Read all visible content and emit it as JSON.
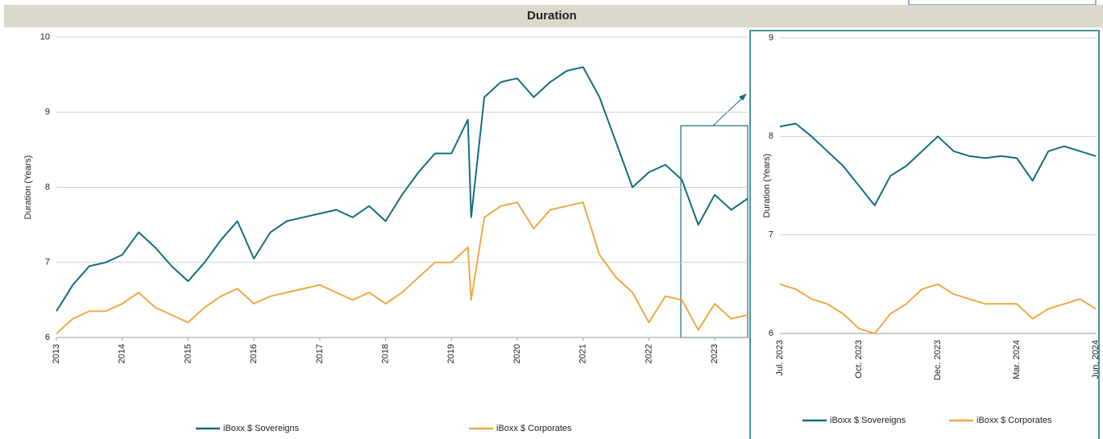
{
  "title": "Duration",
  "chart_data": [
    {
      "type": "line",
      "ylabel": "Duration (Years)",
      "x": [
        2013,
        2013.25,
        2013.5,
        2013.75,
        2014,
        2014.25,
        2014.5,
        2014.75,
        2015,
        2015.25,
        2015.5,
        2015.75,
        2016,
        2016.25,
        2016.5,
        2016.75,
        2017,
        2017.25,
        2017.5,
        2017.75,
        2018,
        2018.25,
        2018.5,
        2018.75,
        2019,
        2019.25,
        2019.3,
        2019.5,
        2019.75,
        2020,
        2020.25,
        2020.5,
        2020.75,
        2021,
        2021.25,
        2021.5,
        2021.75,
        2022,
        2022.25,
        2022.5,
        2022.75,
        2023,
        2023.25,
        2023.5
      ],
      "xlim": [
        2013,
        2023.5
      ],
      "xticks": [
        2013,
        2014,
        2015,
        2016,
        2017,
        2018,
        2019,
        2020,
        2021,
        2022,
        2023
      ],
      "ylim": [
        6,
        10
      ],
      "yticks": [
        6,
        7,
        8,
        9,
        10
      ],
      "grid": true,
      "series": [
        {
          "name": "iBoxx $ Sovereigns",
          "color": "#126e7e",
          "values": [
            6.35,
            6.7,
            6.95,
            7.0,
            7.1,
            7.4,
            7.2,
            6.95,
            6.75,
            7.0,
            7.3,
            7.55,
            7.05,
            7.4,
            7.55,
            7.6,
            7.65,
            7.7,
            7.6,
            7.75,
            7.55,
            7.9,
            8.2,
            8.45,
            8.45,
            8.9,
            7.6,
            9.2,
            9.4,
            9.45,
            9.2,
            9.4,
            9.55,
            9.6,
            9.2,
            8.6,
            8.0,
            8.2,
            8.3,
            8.1,
            7.5,
            7.9,
            7.7,
            7.85
          ]
        },
        {
          "name": "iBoxx $ Corporates",
          "color": "#f0a942",
          "values": [
            6.05,
            6.25,
            6.35,
            6.35,
            6.45,
            6.6,
            6.4,
            6.3,
            6.2,
            6.4,
            6.55,
            6.65,
            6.45,
            6.55,
            6.6,
            6.65,
            6.7,
            6.6,
            6.5,
            6.6,
            6.45,
            6.6,
            6.8,
            7.0,
            7.0,
            7.2,
            6.5,
            7.6,
            7.75,
            7.8,
            7.45,
            7.7,
            7.75,
            7.8,
            7.1,
            6.8,
            6.6,
            6.2,
            6.55,
            6.5,
            6.1,
            6.45,
            6.25,
            6.3
          ]
        }
      ]
    },
    {
      "type": "line",
      "ylabel": "Duration (Years)",
      "categories": [
        "Jul. 2023",
        null,
        null,
        null,
        null,
        "Oct. 2023",
        null,
        null,
        null,
        null,
        "Dec. 2023",
        null,
        null,
        null,
        null,
        "Mar. 2024",
        null,
        null,
        null,
        null,
        "Jun. 2024"
      ],
      "ylim": [
        6,
        9
      ],
      "yticks": [
        6,
        7,
        8,
        9
      ],
      "grid": true,
      "series": [
        {
          "name": "iBoxx $ Sovereigns",
          "color": "#126e7e",
          "values": [
            8.1,
            8.13,
            8.0,
            7.85,
            7.7,
            7.5,
            7.3,
            7.6,
            7.7,
            7.85,
            8.0,
            7.85,
            7.8,
            7.78,
            7.8,
            7.78,
            7.55,
            7.85,
            7.9,
            7.85,
            7.8
          ]
        },
        {
          "name": "iBoxx $ Corporates",
          "color": "#f0a942",
          "values": [
            6.5,
            6.45,
            6.35,
            6.3,
            6.2,
            6.05,
            6.0,
            6.2,
            6.3,
            6.45,
            6.5,
            6.4,
            6.35,
            6.3,
            6.3,
            6.3,
            6.15,
            6.25,
            6.3,
            6.35,
            6.25
          ]
        }
      ]
    }
  ]
}
